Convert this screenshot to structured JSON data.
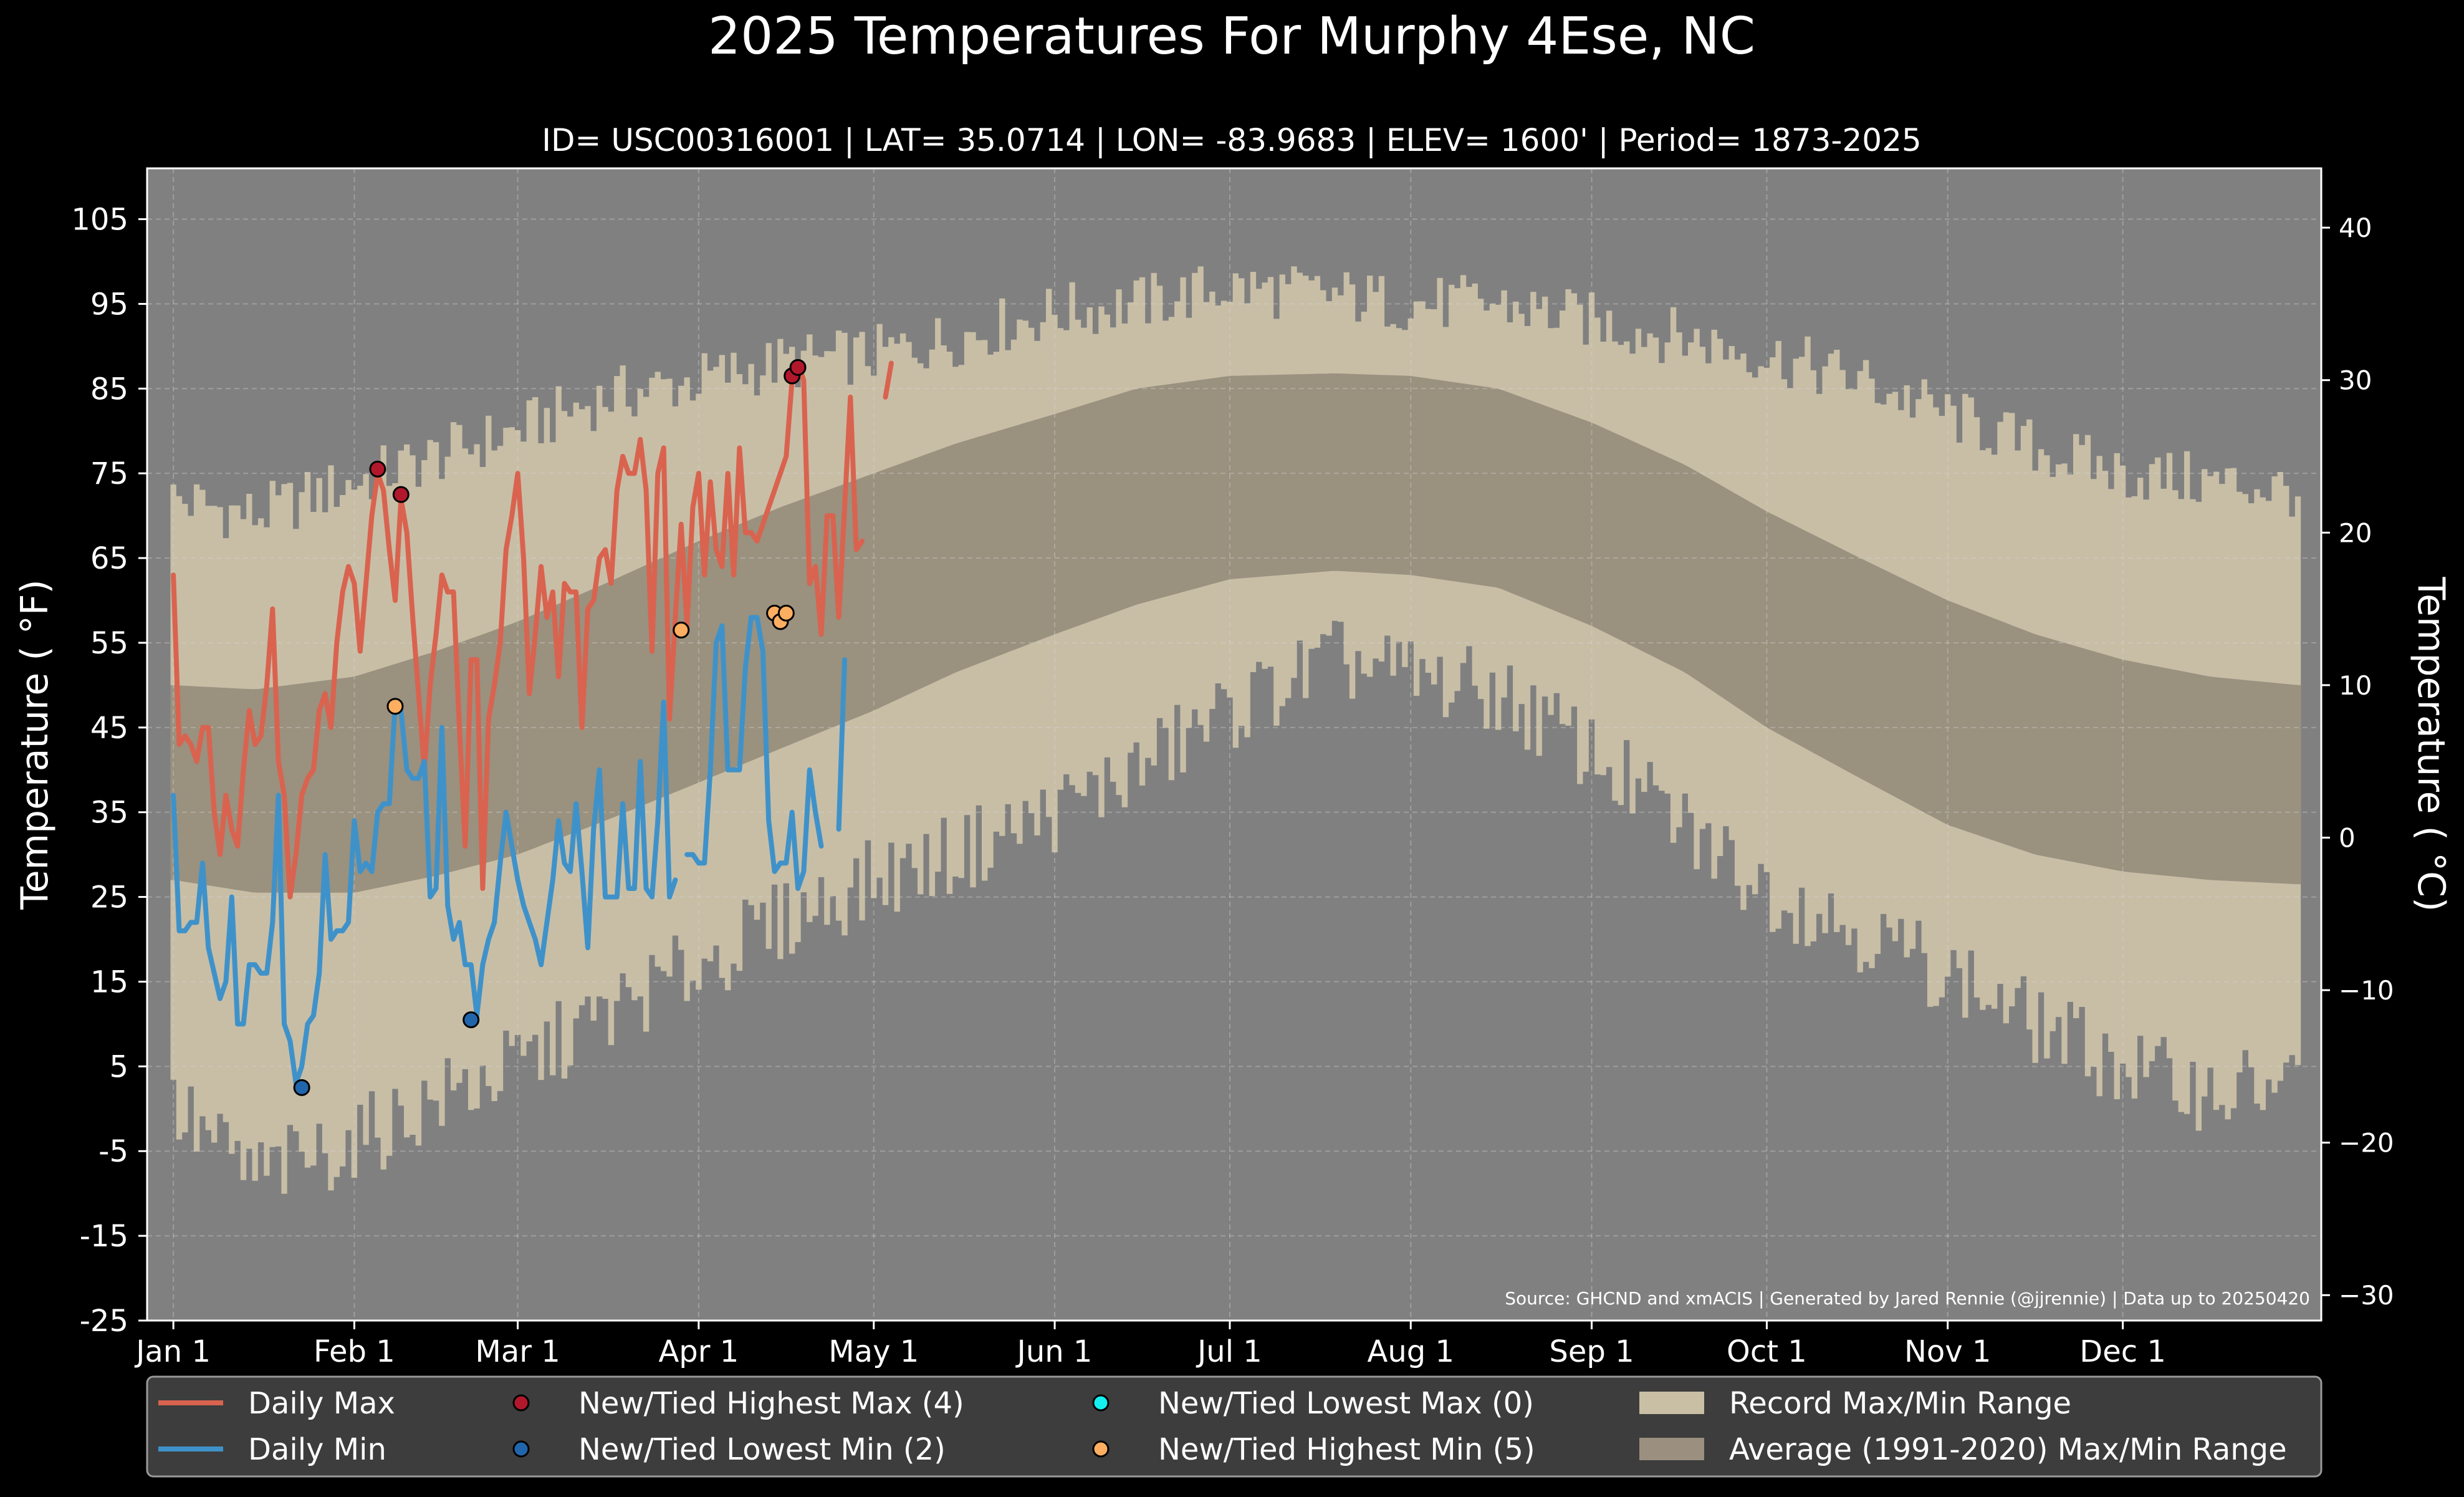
{
  "chart_data": {
    "type": "line",
    "title": "2025 Temperatures For Murphy 4Ese, NC",
    "subtitle": "ID= USC00316001 | LAT= 35.0714 | LON= -83.9683 | ELEV= 1600' | Period= 1873-2025",
    "ylabel": "Temperature ( $^\\circ$F)",
    "ylabel_display": "Temperature ( °F)",
    "ylabel_right": "Temperature ( °C)",
    "source": "Source: GHCND and xmACIS | Generated by Jared Rennie (@jjrennie) | Data up to 20250420",
    "ylim": [
      -25,
      111
    ],
    "yticks": [
      "105",
      "95",
      "85",
      "75",
      "65",
      "55",
      "45",
      "35",
      "25",
      "15",
      "5",
      "-5",
      "-15",
      "-25"
    ],
    "ytick_values": [
      105,
      95,
      85,
      75,
      65,
      55,
      45,
      35,
      25,
      15,
      5,
      -5,
      -15,
      -25
    ],
    "yticks_right": [
      "40",
      "30",
      "20",
      "10",
      "0",
      "−10",
      "−20",
      "−30"
    ],
    "ytick_right_values": [
      40,
      30,
      20,
      10,
      0,
      -10,
      -20,
      -30
    ],
    "xticks": [
      "Jan 1",
      "Feb 1",
      "Mar 1",
      "Apr 1",
      "May 1",
      "Jun 1",
      "Jul 1",
      "Aug 1",
      "Sep 1",
      "Oct 1",
      "Nov 1",
      "Dec 1"
    ],
    "xtick_days": [
      1,
      32,
      60,
      91,
      121,
      152,
      182,
      213,
      244,
      274,
      305,
      335
    ],
    "xlim": [
      -3.5,
      369
    ],
    "grid": true,
    "legend_position": "bottom",
    "legend": [
      {
        "label": "Daily Max",
        "kind": "line",
        "color": "#d9634f"
      },
      {
        "label": "Daily Min",
        "kind": "line",
        "color": "#3f92c9"
      },
      {
        "label": "New/Tied Highest Max (4)",
        "kind": "marker",
        "color": "#b2182b"
      },
      {
        "label": "New/Tied Lowest Min (2)",
        "kind": "marker",
        "color": "#2166ac"
      },
      {
        "label": "New/Tied Lowest Max (0)",
        "kind": "marker",
        "color": "#14f0f0"
      },
      {
        "label": "New/Tied Highest Min (5)",
        "kind": "marker",
        "color": "#fdae61"
      },
      {
        "label": "Record Max/Min Range",
        "kind": "patch",
        "color": "#c9bfa5"
      },
      {
        "label": "Average (1991-2020) Max/Min Range",
        "kind": "patch",
        "color": "#9b9080"
      }
    ],
    "colors": {
      "background": "#000000",
      "plot_bg": "#808080",
      "record_band": "#c8bea6",
      "normal_band": "#9a917f",
      "daily_max": "#d9634f",
      "daily_min": "#3f92c9",
      "highest_max": "#b2182b",
      "lowest_min": "#2166ac",
      "lowest_max": "#14f0f0",
      "highest_min": "#fdae61",
      "legend_bg": "#3d3d3d"
    },
    "normal_max": {
      "days": [
        1,
        15,
        32,
        46,
        60,
        75,
        91,
        105,
        121,
        135,
        152,
        166,
        182,
        200,
        213,
        228,
        244,
        260,
        274,
        290,
        305,
        320,
        335,
        350,
        365
      ],
      "values": [
        50,
        49.5,
        51,
        54,
        57.5,
        62,
        67,
        71,
        75,
        78.5,
        82,
        85,
        86.5,
        86.8,
        86.5,
        85,
        81,
        76,
        70.5,
        65,
        60,
        56,
        53,
        51,
        50
      ]
    },
    "normal_min": {
      "days": [
        1,
        15,
        32,
        46,
        60,
        75,
        91,
        105,
        121,
        135,
        152,
        166,
        182,
        200,
        213,
        228,
        244,
        260,
        274,
        290,
        305,
        320,
        335,
        350,
        365
      ],
      "values": [
        27,
        25.5,
        25.5,
        27.5,
        30,
        34,
        38.5,
        42.5,
        47,
        51.5,
        56,
        59.5,
        62.5,
        63.5,
        63,
        61.5,
        57,
        51.5,
        45,
        39,
        33.5,
        30,
        28,
        27,
        26.5
      ]
    },
    "record_max": {
      "days": [
        1,
        15,
        32,
        46,
        60,
        75,
        91,
        105,
        121,
        135,
        152,
        166,
        182,
        200,
        213,
        228,
        244,
        260,
        274,
        290,
        305,
        320,
        335,
        350,
        365
      ],
      "values": [
        72,
        70,
        74,
        77,
        80,
        84,
        86,
        88,
        89,
        91,
        94,
        95,
        97,
        96,
        95,
        95,
        93,
        91,
        89,
        86,
        82,
        78,
        75,
        74,
        73
      ]
    },
    "record_min": {
      "days": [
        1,
        15,
        32,
        46,
        60,
        75,
        91,
        105,
        121,
        135,
        152,
        166,
        182,
        200,
        213,
        228,
        244,
        260,
        274,
        290,
        305,
        320,
        335,
        350,
        365
      ],
      "values": [
        0,
        -8,
        -4,
        1,
        5,
        11,
        17,
        22,
        27,
        30,
        35,
        40,
        47,
        53,
        51,
        49,
        42,
        33,
        26,
        21,
        16,
        10,
        5,
        2,
        3
      ]
    },
    "daily_max": [
      [
        1,
        63
      ],
      [
        2,
        43
      ],
      [
        3,
        44
      ],
      [
        4,
        43
      ],
      [
        5,
        41
      ],
      [
        6,
        45
      ],
      [
        7,
        45
      ],
      [
        8,
        35
      ],
      [
        9,
        30
      ],
      [
        10,
        37
      ],
      [
        11,
        33
      ],
      [
        12,
        31
      ],
      [
        13,
        40
      ],
      [
        14,
        47
      ],
      [
        15,
        43
      ],
      [
        16,
        44
      ],
      [
        17,
        50
      ],
      [
        18,
        59
      ],
      [
        19,
        41
      ],
      [
        20,
        37
      ],
      [
        21,
        25
      ],
      [
        22,
        30
      ],
      [
        23,
        37
      ],
      [
        24,
        39
      ],
      [
        25,
        40
      ],
      [
        26,
        47
      ],
      [
        27,
        49
      ],
      [
        28,
        45
      ],
      [
        29,
        55
      ],
      [
        30,
        61
      ],
      [
        31,
        64
      ],
      [
        32,
        62
      ],
      [
        33,
        54
      ],
      [
        34,
        62
      ],
      [
        35,
        70
      ],
      [
        36,
        75
      ],
      [
        37,
        73
      ],
      [
        38,
        66
      ],
      [
        39,
        60
      ],
      [
        40,
        72
      ],
      [
        41,
        68
      ],
      [
        42,
        58
      ],
      [
        43,
        49
      ],
      [
        44,
        40
      ],
      [
        45,
        50
      ],
      [
        46,
        56
      ],
      [
        47,
        63
      ],
      [
        48,
        61
      ],
      [
        49,
        61
      ],
      [
        50,
        45
      ],
      [
        51,
        31
      ],
      [
        52,
        53
      ],
      [
        53,
        53
      ],
      [
        54,
        26
      ],
      [
        55,
        46
      ],
      [
        56,
        50
      ],
      [
        57,
        55
      ],
      [
        58,
        66
      ],
      [
        59,
        70
      ],
      [
        60,
        75
      ],
      [
        61,
        65
      ],
      [
        62,
        49
      ],
      [
        63,
        56
      ],
      [
        64,
        64
      ],
      [
        65,
        58
      ],
      [
        66,
        61
      ],
      [
        67,
        51
      ],
      [
        68,
        62
      ],
      [
        69,
        61
      ],
      [
        70,
        61
      ],
      [
        71,
        45
      ],
      [
        72,
        59
      ],
      [
        73,
        60
      ],
      [
        74,
        65
      ],
      [
        75,
        66
      ],
      [
        76,
        62
      ],
      [
        77,
        73
      ],
      [
        78,
        77
      ],
      [
        79,
        75
      ],
      [
        80,
        75
      ],
      [
        81,
        79
      ],
      [
        82,
        73
      ],
      [
        83,
        54
      ],
      [
        84,
        75
      ],
      [
        85,
        78
      ],
      [
        86,
        46
      ],
      [
        87,
        58
      ],
      [
        88,
        69
      ],
      [
        89,
        57
      ],
      [
        90,
        71
      ],
      [
        91,
        75
      ],
      [
        92,
        63
      ],
      [
        93,
        74
      ],
      [
        94,
        66
      ],
      [
        95,
        64
      ],
      [
        96,
        75
      ],
      [
        97,
        63
      ],
      [
        98,
        78
      ],
      [
        99,
        68
      ],
      [
        100,
        68
      ],
      [
        101,
        67
      ],
      [
        106,
        77
      ],
      [
        107,
        86
      ],
      [
        108,
        88
      ],
      [
        109,
        86
      ],
      [
        110,
        62
      ],
      [
        111,
        64
      ],
      [
        112,
        56
      ],
      [
        113,
        70
      ],
      [
        114,
        70
      ],
      [
        115,
        58
      ],
      [
        116,
        71
      ],
      [
        117,
        84
      ],
      [
        118,
        66
      ],
      [
        119,
        67
      ],
      null,
      [
        123,
        84
      ],
      [
        124,
        88
      ]
    ],
    "daily_min": [
      [
        1,
        37
      ],
      [
        2,
        21
      ],
      [
        3,
        21
      ],
      [
        4,
        22
      ],
      [
        5,
        22
      ],
      [
        6,
        29
      ],
      [
        7,
        19
      ],
      [
        8,
        16
      ],
      [
        9,
        13
      ],
      [
        10,
        15
      ],
      [
        11,
        25
      ],
      [
        12,
        10
      ],
      [
        13,
        10
      ],
      [
        14,
        17
      ],
      [
        15,
        17
      ],
      [
        16,
        16
      ],
      [
        17,
        16
      ],
      [
        18,
        22
      ],
      [
        19,
        37
      ],
      [
        20,
        10
      ],
      [
        21,
        8
      ],
      [
        22,
        3
      ],
      [
        23,
        5
      ],
      [
        24,
        10
      ],
      [
        25,
        11
      ],
      [
        26,
        16
      ],
      [
        27,
        30
      ],
      [
        28,
        20
      ],
      [
        29,
        21
      ],
      [
        30,
        21
      ],
      [
        31,
        22
      ],
      [
        32,
        34
      ],
      [
        33,
        28
      ],
      [
        34,
        29
      ],
      [
        35,
        28
      ],
      [
        36,
        35
      ],
      [
        37,
        36
      ],
      [
        38,
        36
      ],
      [
        39,
        48
      ],
      [
        40,
        47
      ],
      [
        41,
        40
      ],
      [
        42,
        39
      ],
      [
        43,
        39
      ],
      [
        44,
        41
      ],
      [
        45,
        25
      ],
      [
        46,
        26
      ],
      [
        47,
        45
      ],
      [
        48,
        24
      ],
      [
        49,
        20
      ],
      [
        50,
        22
      ],
      [
        51,
        17
      ],
      [
        52,
        17
      ],
      [
        53,
        11
      ],
      [
        54,
        17
      ],
      [
        55,
        20
      ],
      [
        56,
        22
      ],
      [
        57,
        29
      ],
      [
        58,
        35
      ],
      [
        59,
        31
      ],
      [
        60,
        27
      ],
      [
        61,
        24
      ],
      [
        62,
        22
      ],
      [
        63,
        20
      ],
      [
        64,
        17
      ],
      [
        65,
        22
      ],
      [
        66,
        27
      ],
      [
        67,
        34
      ],
      [
        68,
        29
      ],
      [
        69,
        28
      ],
      [
        70,
        36
      ],
      [
        71,
        28
      ],
      [
        72,
        19
      ],
      [
        73,
        33
      ],
      [
        74,
        40
      ],
      [
        75,
        25
      ],
      [
        76,
        25
      ],
      [
        77,
        25
      ],
      [
        78,
        36
      ],
      [
        79,
        26
      ],
      [
        80,
        26
      ],
      [
        81,
        41
      ],
      [
        82,
        26
      ],
      [
        83,
        25
      ],
      [
        84,
        34
      ],
      [
        85,
        48
      ],
      [
        86,
        25
      ],
      [
        87,
        27
      ],
      null,
      [
        89,
        30
      ],
      [
        90,
        30
      ],
      [
        91,
        29
      ],
      [
        92,
        29
      ],
      [
        93,
        40
      ],
      [
        94,
        55
      ],
      [
        95,
        57
      ],
      [
        96,
        40
      ],
      [
        97,
        40
      ],
      [
        98,
        40
      ],
      [
        99,
        52
      ],
      [
        100,
        58
      ],
      [
        101,
        58
      ],
      [
        102,
        54
      ],
      [
        103,
        34
      ],
      [
        104,
        28
      ],
      [
        105,
        29
      ],
      [
        106,
        29
      ],
      [
        107,
        35
      ],
      [
        108,
        26
      ],
      [
        109,
        28
      ],
      [
        110,
        40
      ],
      [
        111,
        35
      ],
      [
        112,
        31
      ],
      null,
      [
        115,
        33
      ],
      [
        116,
        53
      ]
    ],
    "highest_max_records": [
      [
        36,
        75.5
      ],
      [
        40,
        72.5
      ],
      [
        107,
        86.5
      ],
      [
        108,
        87.5
      ]
    ],
    "lowest_min_records": [
      [
        23,
        2.5
      ],
      [
        52,
        10.5
      ]
    ],
    "lowest_max_records": [],
    "highest_min_records": [
      [
        39,
        47.5
      ],
      [
        88,
        56.5
      ],
      [
        104,
        58.5
      ],
      [
        105,
        57.5
      ],
      [
        106,
        58.5
      ]
    ]
  }
}
